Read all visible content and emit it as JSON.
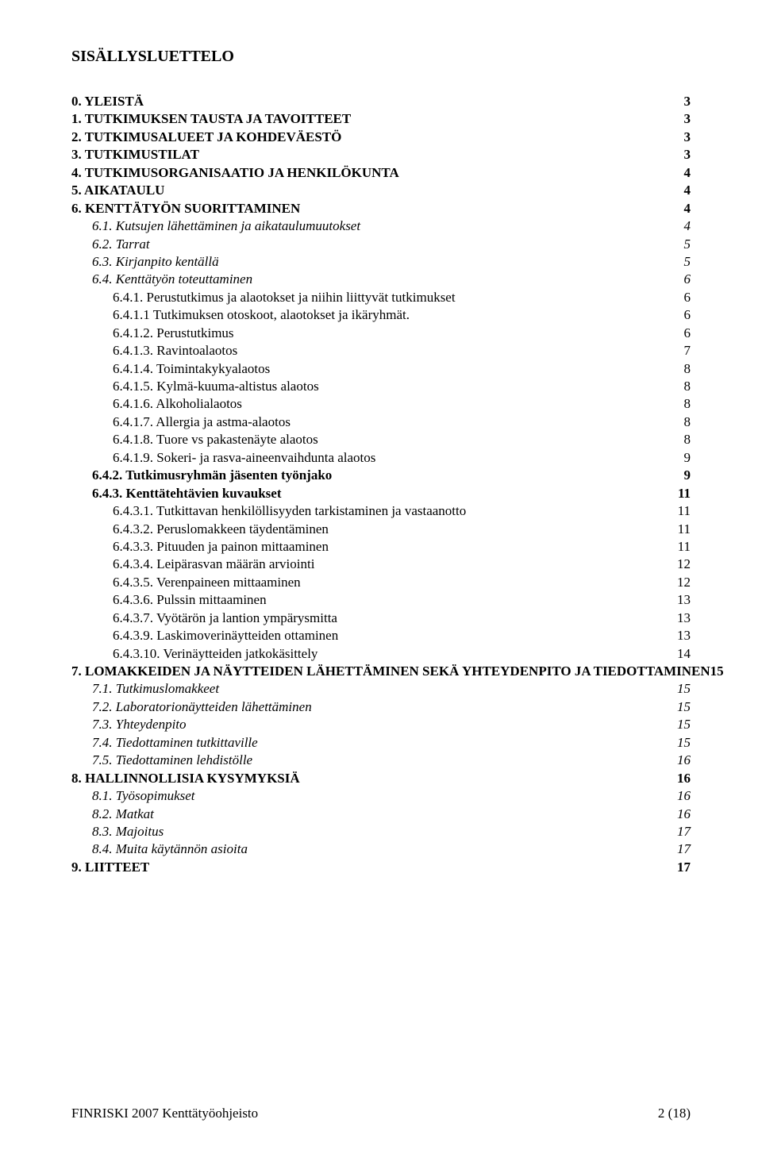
{
  "title": "SISÄLLYSLUETTELO",
  "toc": [
    {
      "label": "0. YLEISTÄ",
      "page": "3",
      "bold": true,
      "indent": 0
    },
    {
      "label": "1. TUTKIMUKSEN TAUSTA JA TAVOITTEET",
      "page": "3",
      "bold": true,
      "indent": 0
    },
    {
      "label": "2. TUTKIMUSALUEET JA KOHDEVÄESTÖ",
      "page": "3",
      "bold": true,
      "indent": 0
    },
    {
      "label": "3. TUTKIMUSTILAT",
      "page": "3",
      "bold": true,
      "indent": 0
    },
    {
      "label": "4. TUTKIMUSORGANISAATIO JA HENKILÖKUNTA",
      "page": "4",
      "bold": true,
      "indent": 0
    },
    {
      "label": "5. AIKATAULU",
      "page": "4",
      "bold": true,
      "indent": 0
    },
    {
      "label": "6. KENTTÄTYÖN SUORITTAMINEN",
      "page": "4",
      "bold": true,
      "indent": 0
    },
    {
      "label": "6.1. Kutsujen lähettäminen ja aikataulumuutokset",
      "page": "4",
      "italic": true,
      "indent": 1
    },
    {
      "label": "6.2. Tarrat",
      "page": "5",
      "italic": true,
      "indent": 1
    },
    {
      "label": "6.3. Kirjanpito kentällä",
      "page": "5",
      "italic": true,
      "indent": 1
    },
    {
      "label": "6.4. Kenttätyön toteuttaminen",
      "page": "6",
      "italic": true,
      "indent": 1
    },
    {
      "label": "6.4.1. Perustutkimus ja alaotokset ja niihin liittyvät tutkimukset",
      "page": "6",
      "indent": 2
    },
    {
      "label": "6.4.1.1 Tutkimuksen otoskoot, alaotokset ja ikäryhmät.",
      "page": "6",
      "indent": 2
    },
    {
      "label": "6.4.1.2. Perustutkimus",
      "page": "6",
      "indent": 2
    },
    {
      "label": "6.4.1.3. Ravintoalaotos",
      "page": "7",
      "indent": 2
    },
    {
      "label": "6.4.1.4. Toimintakykyalaotos",
      "page": "8",
      "indent": 2
    },
    {
      "label": "6.4.1.5. Kylmä-kuuma-altistus alaotos",
      "page": "8",
      "indent": 2
    },
    {
      "label": "6.4.1.6. Alkoholialaotos",
      "page": "8",
      "indent": 2
    },
    {
      "label": "6.4.1.7. Allergia ja astma-alaotos",
      "page": "8",
      "indent": 2
    },
    {
      "label": "6.4.1.8. Tuore vs pakastenäyte alaotos",
      "page": "8",
      "indent": 2
    },
    {
      "label": "6.4.1.9. Sokeri- ja rasva-aineenvaihdunta alaotos",
      "page": "9",
      "indent": 2
    },
    {
      "label": "6.4.2. Tutkimusryhmän jäsenten työnjako",
      "page": "9",
      "bold": true,
      "indent": 1
    },
    {
      "label": "6.4.3. Kenttätehtävien kuvaukset",
      "page": "11",
      "bold": true,
      "indent": 1
    },
    {
      "label": "6.4.3.1. Tutkittavan henkilöllisyyden tarkistaminen ja vastaanotto",
      "page": "11",
      "indent": 2
    },
    {
      "label": "6.4.3.2. Peruslomakkeen täydentäminen",
      "page": "11",
      "indent": 2
    },
    {
      "label": "6.4.3.3. Pituuden ja painon mittaaminen",
      "page": "11",
      "indent": 2
    },
    {
      "label": "6.4.3.4. Leipärasvan määrän arviointi",
      "page": "12",
      "indent": 2
    },
    {
      "label": "6.4.3.5. Verenpaineen mittaaminen",
      "page": "12",
      "indent": 2
    },
    {
      "label": "6.4.3.6. Pulssin mittaaminen",
      "page": "13",
      "indent": 2
    },
    {
      "label": "6.4.3.7. Vyötärön ja lantion ympärysmitta",
      "page": "13",
      "indent": 2
    },
    {
      "label": "6.4.3.9. Laskimoverinäytteiden ottaminen",
      "page": "13",
      "indent": 2
    },
    {
      "label": "6.4.3.10. Verinäytteiden jatkokäsittely",
      "page": "14",
      "indent": 2
    },
    {
      "label": "7. LOMAKKEIDEN JA NÄYTTEIDEN LÄHETTÄMINEN SEKÄ YHTEYDENPITO JA TIEDOTTAMINEN",
      "page": "15",
      "bold": true,
      "indent": 0,
      "nogap": true
    },
    {
      "label": "7.1. Tutkimuslomakkeet",
      "page": "15",
      "italic": true,
      "indent": 1
    },
    {
      "label": "7.2. Laboratorionäytteiden lähettäminen",
      "page": "15",
      "italic": true,
      "indent": 1
    },
    {
      "label": "7.3. Yhteydenpito",
      "page": "15",
      "italic": true,
      "indent": 1
    },
    {
      "label": "7.4. Tiedottaminen tutkittaville",
      "page": "15",
      "italic": true,
      "indent": 1
    },
    {
      "label": "7.5. Tiedottaminen lehdistölle",
      "page": "16",
      "italic": true,
      "indent": 1
    },
    {
      "label": "8. HALLINNOLLISIA KYSYMYKSIÄ",
      "page": "16",
      "bold": true,
      "indent": 0
    },
    {
      "label": "8.1. Työsopimukset",
      "page": "16",
      "italic": true,
      "indent": 1
    },
    {
      "label": "8.2. Matkat",
      "page": "16",
      "italic": true,
      "indent": 1
    },
    {
      "label": "8.3. Majoitus",
      "page": "17",
      "italic": true,
      "indent": 1
    },
    {
      "label": "8.4. Muita käytännön asioita",
      "page": "17",
      "italic": true,
      "indent": 1
    },
    {
      "label": "9. LIITTEET",
      "page": "17",
      "bold": true,
      "indent": 0
    }
  ],
  "footer": {
    "left": "FINRISKI 2007 Kenttätyöohjeisto",
    "right": "2 (18)"
  }
}
